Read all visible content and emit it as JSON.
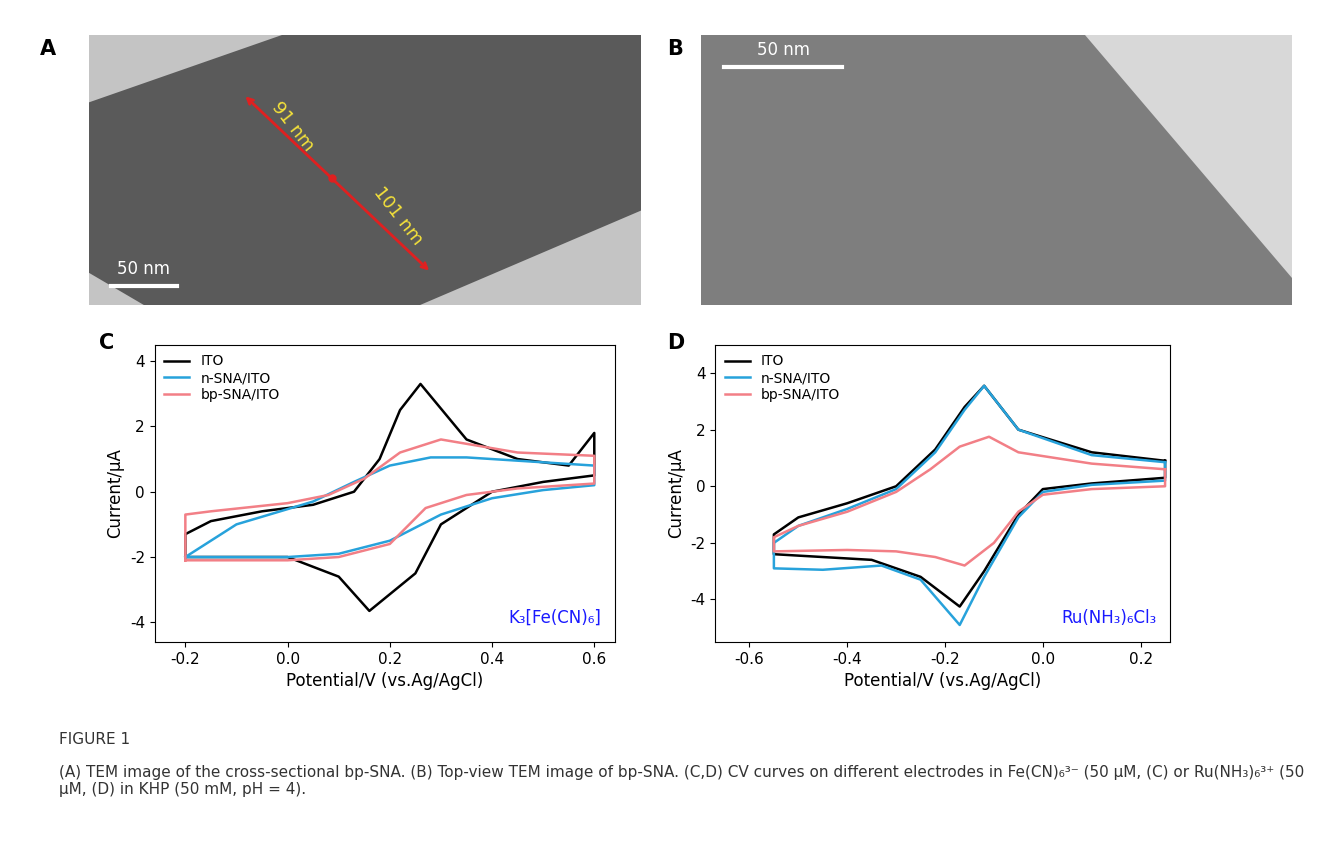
{
  "figure_label": "FIGURE 1",
  "caption": "(A) TEM image of the cross-sectional bp-SNA. (B) Top-view TEM image of bp-SNA. (C,D) CV curves on different electrodes in Fe(CN)₆³⁻ (50 μM, (C) or Ru(NH₃)₆³⁺ (50 μM, (D) in KHP (50 mM, pH = 4).",
  "images": [
    {
      "panel": "A",
      "annotations": [
        "91 nm",
        "101 nm"
      ],
      "scale_bar": "50 nm"
    },
    {
      "panel": "B",
      "scale_bar": "50 nm"
    }
  ],
  "chart_data": [
    {
      "panel": "C",
      "type": "line",
      "x_label": "Potential/V (vs.Ag/AgCl)",
      "y_label": "Current/μA",
      "xlim": [
        -0.26,
        0.64
      ],
      "ylim": [
        -4.6,
        4.5
      ],
      "xticks": [
        -0.2,
        0.0,
        0.2,
        0.4,
        0.6
      ],
      "yticks": [
        -4,
        -2,
        0,
        2,
        4
      ],
      "legend": "upper left",
      "annotation": "K₃[Fe(CN)₆]",
      "series": [
        {
          "name": "ITO",
          "color": "#000000",
          "x": [
            -0.2,
            0.0,
            0.1,
            0.16,
            0.25,
            0.3,
            0.4,
            0.5,
            0.6,
            0.6,
            0.55,
            0.45,
            0.35,
            0.26,
            0.22,
            0.18,
            0.13,
            0.05,
            -0.05,
            -0.15,
            -0.2
          ],
          "values": [
            -2.0,
            -2.0,
            -2.6,
            -3.65,
            -2.5,
            -1.0,
            0.0,
            0.3,
            0.5,
            1.8,
            0.8,
            1.0,
            1.6,
            3.3,
            2.5,
            1.0,
            0.0,
            -0.4,
            -0.6,
            -0.9,
            -1.3
          ]
        },
        {
          "name": "n-SNA/ITO",
          "color": "#27a2db",
          "x": [
            -0.2,
            0.0,
            0.1,
            0.2,
            0.3,
            0.4,
            0.5,
            0.6,
            0.6,
            0.5,
            0.35,
            0.28,
            0.2,
            0.13,
            0.05,
            -0.1,
            -0.2
          ],
          "values": [
            -2.0,
            -2.0,
            -1.9,
            -1.5,
            -0.7,
            -0.2,
            0.05,
            0.2,
            0.8,
            0.9,
            1.05,
            1.05,
            0.8,
            0.3,
            -0.3,
            -1.0,
            -2.0
          ]
        },
        {
          "name": "bp-SNA/ITO",
          "color": "#f27f86",
          "x": [
            -0.2,
            0.0,
            0.1,
            0.2,
            0.27,
            0.35,
            0.45,
            0.6,
            0.6,
            0.45,
            0.3,
            0.22,
            0.15,
            0.08,
            0.0,
            -0.15,
            -0.2
          ],
          "values": [
            -2.1,
            -2.1,
            -2.0,
            -1.6,
            -0.5,
            -0.1,
            0.1,
            0.25,
            1.1,
            1.2,
            1.6,
            1.2,
            0.4,
            -0.1,
            -0.35,
            -0.6,
            -0.7
          ]
        }
      ]
    },
    {
      "panel": "D",
      "type": "line",
      "x_label": "Potential/V (vs.Ag/AgCl)",
      "y_label": "Current/μA",
      "xlim": [
        -0.67,
        0.26
      ],
      "ylim": [
        -5.5,
        5.0
      ],
      "xticks": [
        -0.6,
        -0.4,
        -0.2,
        0.0,
        0.2
      ],
      "yticks": [
        -4,
        -2,
        0,
        2,
        4
      ],
      "legend": "upper left",
      "annotation": "Ru(NH₃)₆Cl₃",
      "series": [
        {
          "name": "ITO",
          "color": "#000000",
          "x": [
            0.25,
            0.1,
            -0.05,
            -0.12,
            -0.16,
            -0.22,
            -0.3,
            -0.4,
            -0.5,
            -0.55,
            -0.55,
            -0.45,
            -0.35,
            -0.25,
            -0.17,
            -0.12,
            -0.05,
            0.0,
            0.1,
            0.25
          ],
          "values": [
            0.9,
            1.2,
            2.0,
            3.55,
            2.8,
            1.3,
            0.0,
            -0.6,
            -1.1,
            -1.7,
            -2.4,
            -2.5,
            -2.6,
            -3.2,
            -4.25,
            -3.0,
            -1.0,
            -0.1,
            0.1,
            0.3
          ]
        },
        {
          "name": "n-SNA/ITO",
          "color": "#27a2db",
          "x": [
            0.25,
            0.1,
            -0.05,
            -0.12,
            -0.16,
            -0.22,
            -0.3,
            -0.4,
            -0.5,
            -0.55,
            -0.55,
            -0.45,
            -0.33,
            -0.25,
            -0.17,
            -0.12,
            -0.05,
            0.0,
            0.1,
            0.25
          ],
          "values": [
            0.85,
            1.1,
            2.0,
            3.55,
            2.7,
            1.2,
            -0.1,
            -0.8,
            -1.4,
            -2.0,
            -2.9,
            -2.95,
            -2.8,
            -3.3,
            -4.9,
            -3.2,
            -1.1,
            -0.2,
            0.05,
            0.2
          ]
        },
        {
          "name": "bp-SNA/ITO",
          "color": "#f27f86",
          "x": [
            0.25,
            0.1,
            -0.05,
            -0.11,
            -0.17,
            -0.23,
            -0.3,
            -0.4,
            -0.5,
            -0.55,
            -0.55,
            -0.4,
            -0.3,
            -0.22,
            -0.16,
            -0.1,
            -0.05,
            0.0,
            0.1,
            0.25
          ],
          "values": [
            0.6,
            0.8,
            1.2,
            1.75,
            1.4,
            0.6,
            -0.2,
            -0.9,
            -1.4,
            -1.8,
            -2.3,
            -2.25,
            -2.3,
            -2.5,
            -2.8,
            -2.0,
            -0.9,
            -0.3,
            -0.1,
            0.0
          ]
        }
      ]
    }
  ]
}
